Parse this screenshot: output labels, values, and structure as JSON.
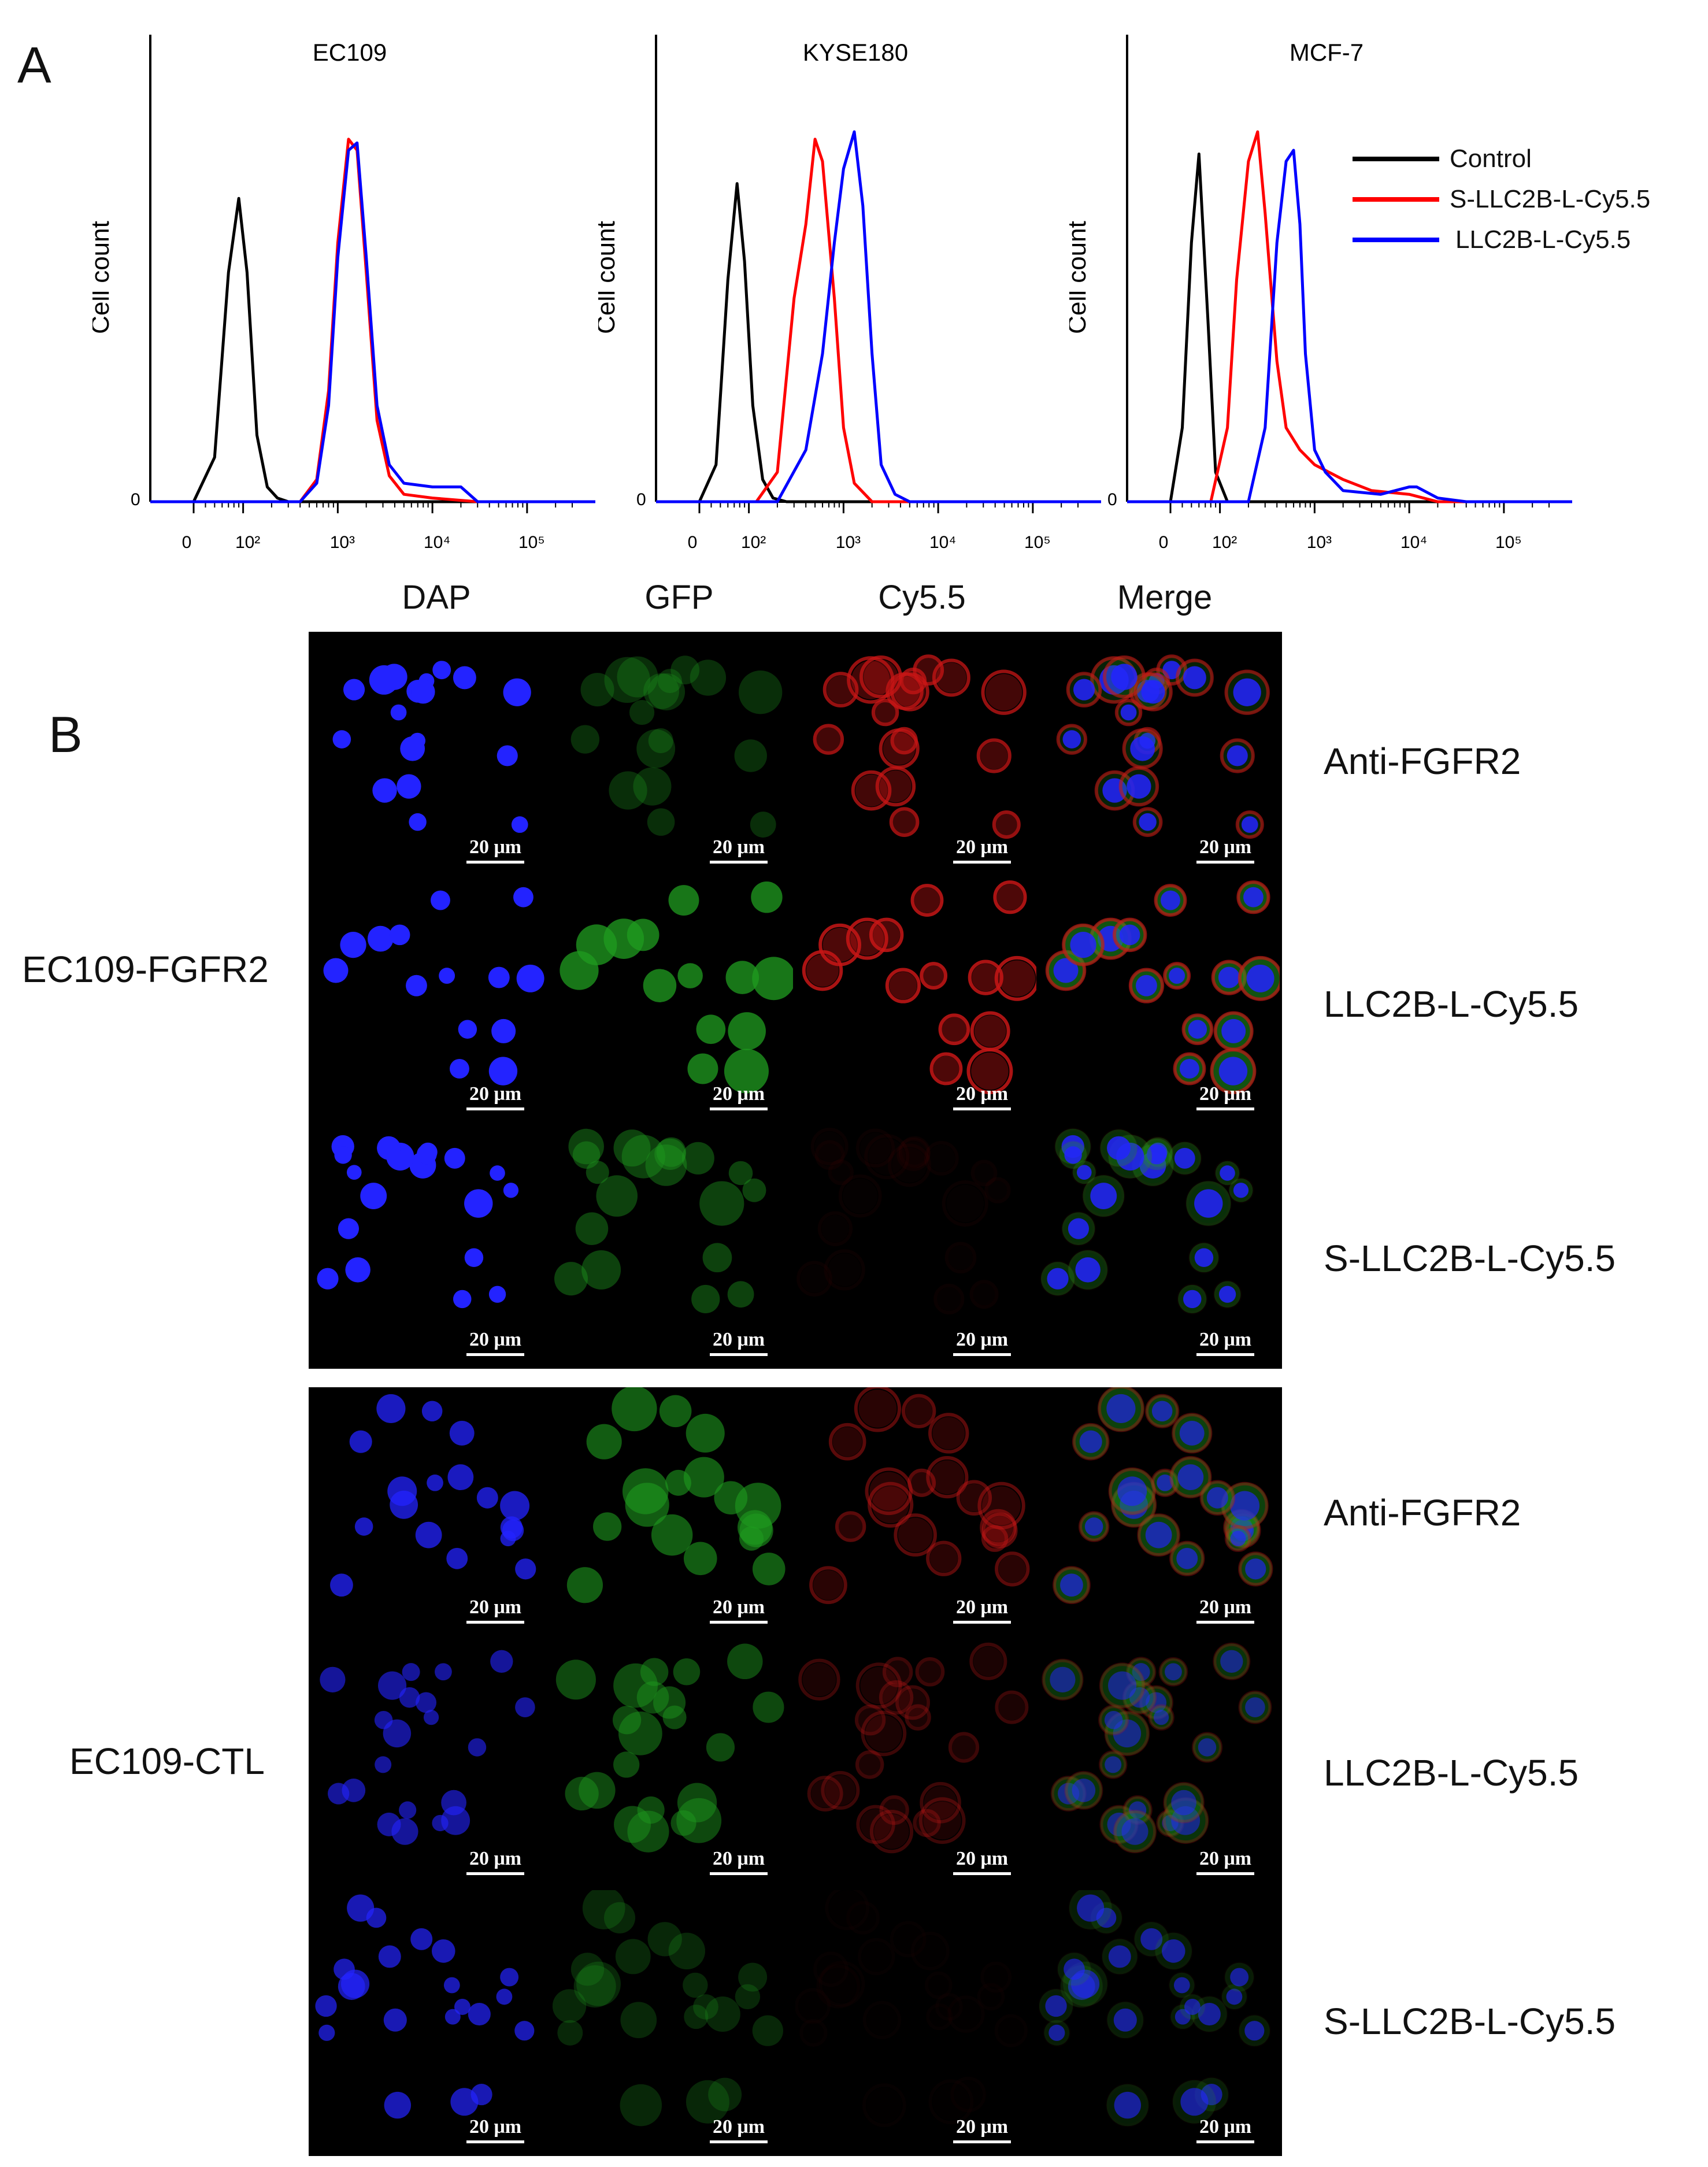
{
  "panel_a_letter": "A",
  "panel_b_letter": "B",
  "histograms": {
    "y_label": "Cell count",
    "y_zero": "0",
    "x_ticks": [
      "0",
      "10²",
      "10³",
      "10⁴",
      "10⁵"
    ],
    "legend": [
      {
        "label": "Control",
        "color": "#000000"
      },
      {
        "label": "S-LLC2B-L-Cy5.5",
        "color": "#ff0000"
      },
      {
        "label": "LLC2B-L-Cy5.5",
        "color": "#0000ff"
      }
    ],
    "panels": [
      {
        "title": "EC109"
      },
      {
        "title": "KYSE180"
      },
      {
        "title": "MCF-7"
      }
    ]
  },
  "chart_data": [
    {
      "type": "line",
      "title": "EC109",
      "xlabel": "",
      "ylabel": "Cell count",
      "x_scale": "log",
      "series": [
        {
          "name": "Control",
          "color": "#000000",
          "x": [
            30,
            50,
            70,
            90,
            110,
            140,
            180,
            230,
            300
          ],
          "y": [
            0,
            0.12,
            0.62,
            0.82,
            0.62,
            0.18,
            0.04,
            0.01,
            0
          ]
        },
        {
          "name": "S-LLC2B-L-Cy5.5",
          "color": "#ff0000",
          "x": [
            400,
            600,
            800,
            1000,
            1300,
            1600,
            2000,
            2600,
            3500,
            5000,
            10000,
            30000
          ],
          "y": [
            0,
            0.06,
            0.3,
            0.7,
            0.98,
            0.95,
            0.62,
            0.22,
            0.07,
            0.02,
            0.01,
            0
          ]
        },
        {
          "name": "LLC2B-L-Cy5.5",
          "color": "#0000ff",
          "x": [
            400,
            600,
            800,
            1000,
            1300,
            1600,
            2000,
            2600,
            3500,
            5000,
            10000,
            20000,
            30000
          ],
          "y": [
            0,
            0.05,
            0.26,
            0.66,
            0.95,
            0.97,
            0.66,
            0.26,
            0.1,
            0.05,
            0.04,
            0.04,
            0
          ]
        }
      ]
    },
    {
      "type": "line",
      "title": "KYSE180",
      "xlabel": "",
      "ylabel": "Cell count",
      "x_scale": "log",
      "series": [
        {
          "name": "Control",
          "color": "#000000",
          "x": [
            30,
            45,
            60,
            75,
            90,
            110,
            140,
            180,
            250
          ],
          "y": [
            0,
            0.1,
            0.6,
            0.86,
            0.65,
            0.26,
            0.06,
            0.01,
            0
          ]
        },
        {
          "name": "S-LLC2B-L-Cy5.5",
          "color": "#ff0000",
          "x": [
            120,
            200,
            300,
            400,
            500,
            600,
            800,
            1000,
            1300,
            2000
          ],
          "y": [
            0,
            0.08,
            0.55,
            0.75,
            0.98,
            0.92,
            0.55,
            0.2,
            0.05,
            0
          ]
        },
        {
          "name": "LLC2B-L-Cy5.5",
          "color": "#0000ff",
          "x": [
            200,
            400,
            600,
            800,
            1000,
            1300,
            1600,
            2000,
            2500,
            3500,
            5000
          ],
          "y": [
            0,
            0.14,
            0.4,
            0.7,
            0.9,
            1.0,
            0.8,
            0.4,
            0.1,
            0.02,
            0
          ]
        }
      ]
    },
    {
      "type": "line",
      "title": "MCF-7",
      "xlabel": "",
      "ylabel": "Cell count",
      "x_scale": "log",
      "series": [
        {
          "name": "Control",
          "color": "#000000",
          "x": [
            30,
            40,
            50,
            60,
            75,
            90,
            120
          ],
          "y": [
            0,
            0.2,
            0.7,
            0.94,
            0.48,
            0.08,
            0
          ]
        },
        {
          "name": "S-LLC2B-L-Cy5.5",
          "color": "#ff0000",
          "x": [
            80,
            120,
            150,
            200,
            250,
            300,
            400,
            500,
            700,
            1000,
            2000,
            4000,
            10000,
            20000
          ],
          "y": [
            0,
            0.2,
            0.6,
            0.92,
            1.0,
            0.78,
            0.38,
            0.2,
            0.14,
            0.1,
            0.06,
            0.03,
            0.02,
            0
          ]
        },
        {
          "name": "LLC2B-L-Cy5.5",
          "color": "#0000ff",
          "x": [
            200,
            300,
            400,
            500,
            600,
            700,
            800,
            1000,
            1300,
            2000,
            5000,
            10000,
            12000,
            20000,
            40000
          ],
          "y": [
            0,
            0.2,
            0.7,
            0.92,
            0.95,
            0.75,
            0.4,
            0.14,
            0.08,
            0.03,
            0.02,
            0.04,
            0.04,
            0.01,
            0
          ]
        }
      ]
    }
  ],
  "panel_b": {
    "columns": [
      "DAP",
      "GFP",
      "Cy5.5",
      "Merge"
    ],
    "scale_bar": "20 μm",
    "groups": [
      {
        "label": "EC109-FGFR2",
        "conditions": [
          "Anti-FGFR2",
          "LLC2B-L-Cy5.5",
          "S-LLC2B-L-Cy5.5"
        ]
      },
      {
        "label": "EC109-CTL",
        "conditions": [
          "Anti-FGFR2",
          "LLC2B-L-Cy5.5",
          "S-LLC2B-L-Cy5.5"
        ]
      }
    ],
    "channel_colors": {
      "dap": "#2323ff",
      "gfp": "#1f9a1f",
      "cy55": "#c81616"
    }
  }
}
